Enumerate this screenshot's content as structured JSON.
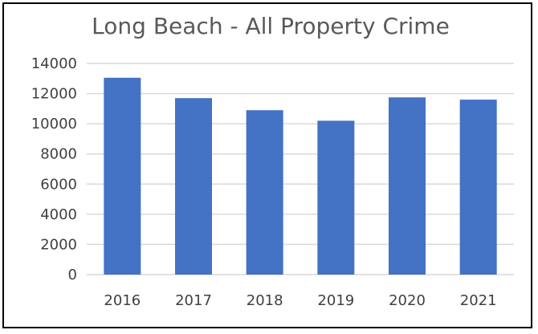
{
  "chart_data": {
    "type": "bar",
    "title": "Long Beach - All Property Crime",
    "categories": [
      "2016",
      "2017",
      "2018",
      "2019",
      "2020",
      "2021"
    ],
    "values": [
      13050,
      11700,
      10900,
      10200,
      11750,
      11600
    ],
    "ylim": [
      0,
      14000
    ],
    "yticks": [
      0,
      2000,
      4000,
      6000,
      8000,
      10000,
      12000,
      14000
    ],
    "grid": true,
    "legend": "none",
    "colors": {
      "bar": "#4472C4",
      "grid": "#D9D9D9",
      "title": "#595959",
      "tick": "#404040"
    }
  }
}
